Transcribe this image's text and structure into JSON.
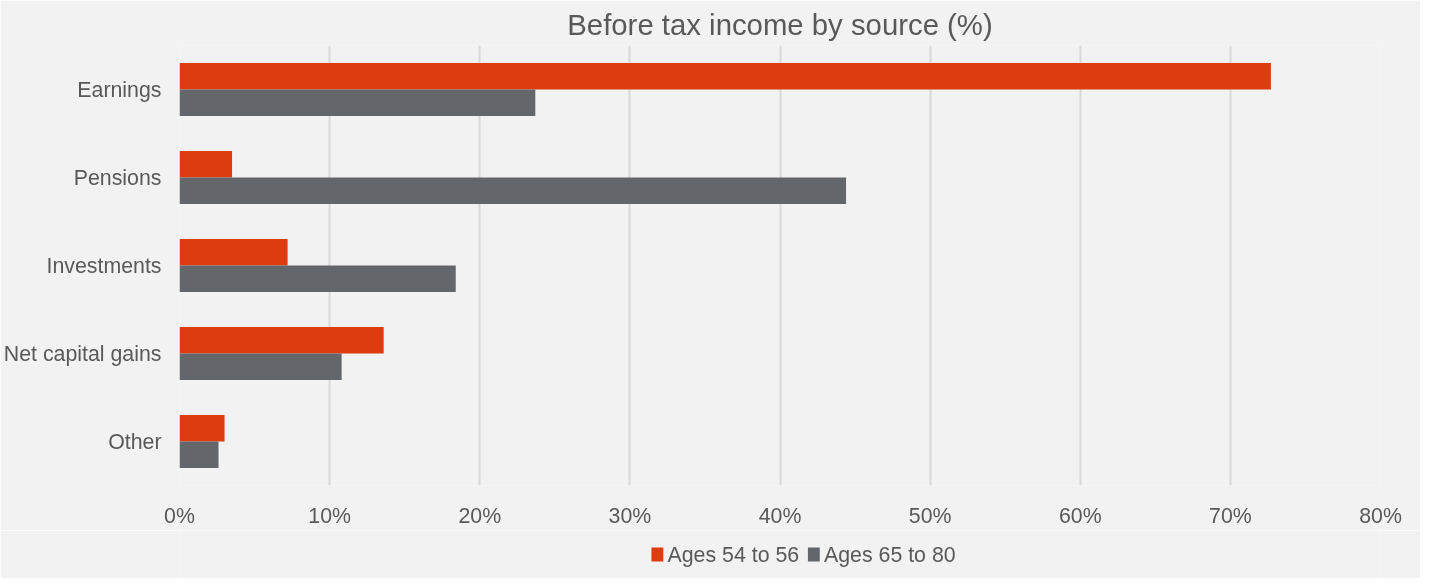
{
  "chart_data": {
    "type": "bar",
    "orientation": "horizontal",
    "title": "Before tax income by source (%)",
    "categories": [
      "Earnings",
      "Pensions",
      "Investments",
      "Net capital gains",
      "Other"
    ],
    "series": [
      {
        "name": "Ages 54 to 56",
        "color": "#dc3c0f",
        "values": [
          72.7,
          3.5,
          7.2,
          13.6,
          3.0
        ]
      },
      {
        "name": "Ages 65 to 80",
        "color": "#63666a",
        "values": [
          23.7,
          44.4,
          18.4,
          10.8,
          2.6
        ]
      }
    ],
    "xlim": [
      0,
      80
    ],
    "xticks": [
      {
        "value": 0,
        "label": "0%"
      },
      {
        "value": 10,
        "label": "10%"
      },
      {
        "value": 20,
        "label": "20%"
      },
      {
        "value": 30,
        "label": "30%"
      },
      {
        "value": 40,
        "label": "40%"
      },
      {
        "value": 50,
        "label": "50%"
      },
      {
        "value": 60,
        "label": "60%"
      },
      {
        "value": 70,
        "label": "70%"
      },
      {
        "value": 80,
        "label": "80%"
      }
    ],
    "grid": "x",
    "legend": "bottom"
  }
}
